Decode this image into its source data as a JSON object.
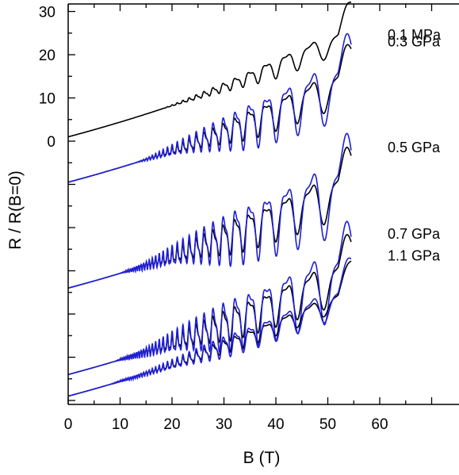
{
  "chart_data": {
    "type": "line",
    "xlabel": "B (T)",
    "ylabel": "R / R(B=0)",
    "xlim": [
      0,
      70
    ],
    "x_ticks": [
      0,
      10,
      20,
      30,
      40,
      50,
      60
    ],
    "y_ticks_labeled": [
      0,
      10,
      20,
      30
    ],
    "grid": false,
    "legend": "none",
    "colors": {
      "axis": "#000000",
      "black_trace": "#000000",
      "blue_trace": "#1f1fd6"
    },
    "curves": [
      {
        "label": "0.1 MPa",
        "baseline": 1,
        "osc_start": 18,
        "amplitude": 2.0,
        "has_blue": false
      },
      {
        "label": "0.3 GPa",
        "baseline": -9.5,
        "osc_start": 13,
        "amplitude": 3.2,
        "has_blue": true
      },
      {
        "label": "0.5 GPa",
        "baseline": -34,
        "osc_start": 10,
        "amplitude": 4.0,
        "has_blue": true
      },
      {
        "label": "0.7 GPa",
        "baseline": -54,
        "osc_start": 9,
        "amplitude": 3.8,
        "has_blue": true
      },
      {
        "label": "1.1 GPa",
        "baseline": -59,
        "osc_start": 8,
        "amplitude": 1.6,
        "has_blue": true
      }
    ]
  }
}
